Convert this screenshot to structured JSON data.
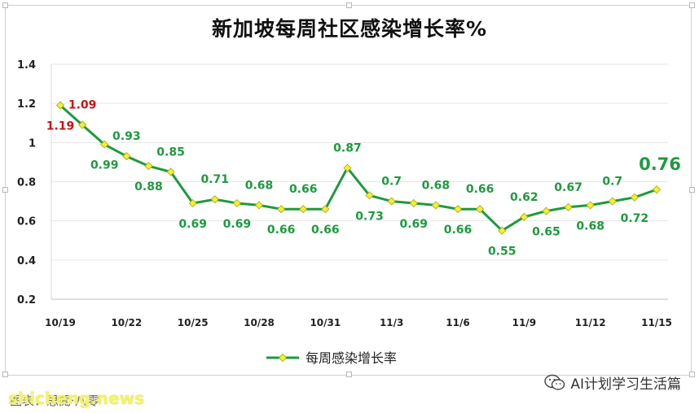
{
  "chart_data": {
    "type": "line",
    "title": "新加坡每周社区感染增长率%",
    "categories": [
      "10/19",
      "10/20",
      "10/21",
      "10/22",
      "10/23",
      "10/24",
      "10/25",
      "10/26",
      "10/27",
      "10/28",
      "10/29",
      "10/30",
      "10/31",
      "11/1",
      "11/2",
      "11/3",
      "11/4",
      "11/5",
      "11/6",
      "11/7",
      "11/8",
      "11/9",
      "11/10",
      "11/11",
      "11/12",
      "11/13",
      "11/14",
      "11/15"
    ],
    "x_tick_labels": [
      "10/19",
      "10/22",
      "10/25",
      "10/28",
      "10/31",
      "11/3",
      "11/6",
      "11/9",
      "11/12",
      "11/15"
    ],
    "series": [
      {
        "name": "每周感染增长率",
        "color": "#1e9a3e",
        "values": [
          1.19,
          1.09,
          0.99,
          0.93,
          0.88,
          0.85,
          0.69,
          0.71,
          0.69,
          0.68,
          0.66,
          0.66,
          0.66,
          0.87,
          0.73,
          0.7,
          0.69,
          0.68,
          0.66,
          0.66,
          0.55,
          0.62,
          0.65,
          0.67,
          0.68,
          0.7,
          0.72,
          0.76
        ]
      }
    ],
    "data_labels": [
      {
        "index": 0,
        "text": "1.19",
        "pos": "below",
        "color": "#cc1111"
      },
      {
        "index": 1,
        "text": "1.09",
        "pos": "above",
        "color": "#cc1111"
      },
      {
        "index": 2,
        "text": "0.99",
        "pos": "below",
        "color": "#1e9a3e"
      },
      {
        "index": 3,
        "text": "0.93",
        "pos": "above",
        "color": "#1e9a3e"
      },
      {
        "index": 4,
        "text": "0.88",
        "pos": "below",
        "color": "#1e9a3e"
      },
      {
        "index": 5,
        "text": "0.85",
        "pos": "above",
        "color": "#1e9a3e"
      },
      {
        "index": 6,
        "text": "0.69",
        "pos": "below",
        "color": "#1e9a3e"
      },
      {
        "index": 7,
        "text": "0.71",
        "pos": "above",
        "color": "#1e9a3e"
      },
      {
        "index": 8,
        "text": "0.69",
        "pos": "below",
        "color": "#1e9a3e"
      },
      {
        "index": 9,
        "text": "0.68",
        "pos": "above",
        "color": "#1e9a3e"
      },
      {
        "index": 10,
        "text": "0.66",
        "pos": "below",
        "color": "#1e9a3e"
      },
      {
        "index": 11,
        "text": "0.66",
        "pos": "above",
        "color": "#1e9a3e"
      },
      {
        "index": 12,
        "text": "0.66",
        "pos": "below",
        "color": "#1e9a3e"
      },
      {
        "index": 13,
        "text": "0.87",
        "pos": "above",
        "color": "#1e9a3e"
      },
      {
        "index": 14,
        "text": "0.73",
        "pos": "below",
        "color": "#1e9a3e"
      },
      {
        "index": 15,
        "text": "0.7",
        "pos": "above",
        "color": "#1e9a3e"
      },
      {
        "index": 16,
        "text": "0.69",
        "pos": "below",
        "color": "#1e9a3e"
      },
      {
        "index": 17,
        "text": "0.68",
        "pos": "above",
        "color": "#1e9a3e"
      },
      {
        "index": 18,
        "text": "0.66",
        "pos": "below",
        "color": "#1e9a3e"
      },
      {
        "index": 19,
        "text": "0.66",
        "pos": "above",
        "color": "#1e9a3e"
      },
      {
        "index": 20,
        "text": "0.55",
        "pos": "below",
        "color": "#1e9a3e"
      },
      {
        "index": 21,
        "text": "0.62",
        "pos": "above",
        "color": "#1e9a3e"
      },
      {
        "index": 22,
        "text": "0.65",
        "pos": "below",
        "color": "#1e9a3e"
      },
      {
        "index": 23,
        "text": "0.67",
        "pos": "above",
        "color": "#1e9a3e"
      },
      {
        "index": 24,
        "text": "0.68",
        "pos": "below",
        "color": "#1e9a3e"
      },
      {
        "index": 25,
        "text": "0.7",
        "pos": "above",
        "color": "#1e9a3e"
      },
      {
        "index": 26,
        "text": "0.72",
        "pos": "below",
        "color": "#1e9a3e"
      },
      {
        "index": 27,
        "text": "0.76",
        "pos": "above",
        "color": "#1e9a3e",
        "emphasis": true
      }
    ],
    "y_ticks": [
      "0.2",
      "0.4",
      "0.6",
      "0.8",
      "1",
      "1.2",
      "1.4"
    ],
    "ylim": [
      0.2,
      1.4
    ],
    "xlabel": "",
    "ylabel": "",
    "grid": true,
    "legend": {
      "position": "bottom",
      "label": "每周感染增长率"
    },
    "marker": {
      "shape": "diamond",
      "fill": "#f2ee3a",
      "stroke": "#a8a800"
    }
  },
  "footer": {
    "watermark": "shicheng.news",
    "source": "图表：思閲·八零",
    "account": "AI计划学习生活篇"
  },
  "icons": {
    "wechat": "wechat-icon"
  }
}
